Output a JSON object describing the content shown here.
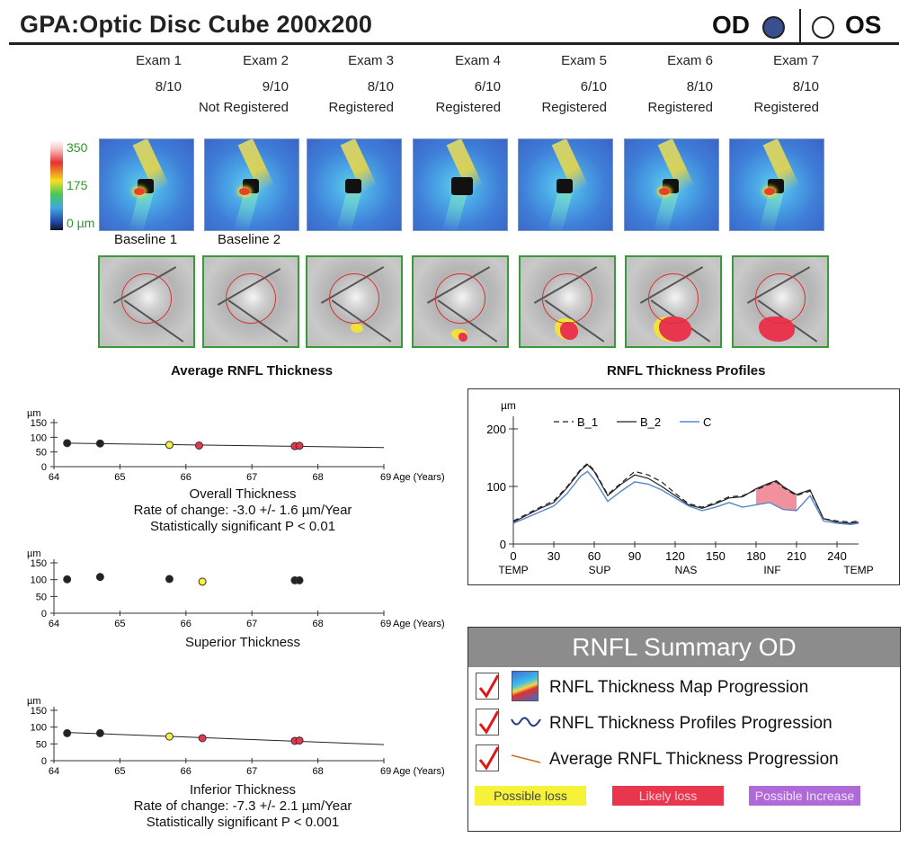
{
  "header": {
    "title": "GPA:Optic Disc Cube 200x200",
    "od_label": "OD",
    "os_label": "OS",
    "selected_eye": "OD"
  },
  "exams": [
    {
      "name": "Exam 1",
      "signal": "8/10",
      "status": ""
    },
    {
      "name": "Exam 2",
      "signal": "9/10",
      "status": "Not Registered"
    },
    {
      "name": "Exam 3",
      "signal": "8/10",
      "status": "Registered"
    },
    {
      "name": "Exam 4",
      "signal": "6/10",
      "status": "Registered"
    },
    {
      "name": "Exam 5",
      "signal": "6/10",
      "status": "Registered"
    },
    {
      "name": "Exam 6",
      "signal": "8/10",
      "status": "Registered"
    },
    {
      "name": "Exam 7",
      "signal": "8/10",
      "status": "Registered"
    }
  ],
  "color_scale": {
    "max": "350",
    "mid": "175",
    "min": "0 µm"
  },
  "baseline_labels": [
    "Baseline 1",
    "Baseline 2"
  ],
  "sections": {
    "average_title": "Average RNFL Thickness",
    "profiles_title": "RNFL Thickness Profiles"
  },
  "colors": {
    "possible_loss": "#f6f23a",
    "likely_loss": "#e8364e",
    "possible_increase": "#b06ad8",
    "od_fill": "#3a4f8e",
    "summary_header": "#8c8c8c"
  },
  "chart_data": [
    {
      "id": "overall",
      "type": "scatter",
      "title": "Overall Thickness",
      "rate": "Rate of change: -3.0 +/- 1.6 µm/Year",
      "significance": "Statistically significant P < 0.01",
      "ylabel": "µm",
      "xlabel": "Age (Years)",
      "xlim": [
        64,
        69
      ],
      "ylim": [
        0,
        150
      ],
      "yticks": [
        0,
        50,
        100,
        150
      ],
      "xticks": [
        64,
        65,
        66,
        67,
        68,
        69
      ],
      "points": [
        {
          "x": 64.2,
          "y": 80,
          "status": "normal"
        },
        {
          "x": 64.7,
          "y": 79,
          "status": "normal"
        },
        {
          "x": 65.75,
          "y": 74,
          "status": "possible"
        },
        {
          "x": 66.2,
          "y": 72,
          "status": "likely"
        },
        {
          "x": 67.65,
          "y": 70,
          "status": "likely"
        },
        {
          "x": 67.72,
          "y": 71,
          "status": "likely"
        }
      ],
      "trend": [
        [
          64.2,
          80
        ],
        [
          69,
          65
        ]
      ]
    },
    {
      "id": "superior",
      "type": "scatter",
      "title": "Superior Thickness",
      "rate": "",
      "significance": "",
      "ylabel": "µm",
      "xlabel": "Age (Years)",
      "xlim": [
        64,
        69
      ],
      "ylim": [
        0,
        150
      ],
      "yticks": [
        0,
        50,
        100,
        150
      ],
      "xticks": [
        64,
        65,
        66,
        67,
        68,
        69
      ],
      "points": [
        {
          "x": 64.2,
          "y": 101,
          "status": "normal"
        },
        {
          "x": 64.7,
          "y": 108,
          "status": "normal"
        },
        {
          "x": 65.75,
          "y": 102,
          "status": "normal"
        },
        {
          "x": 66.25,
          "y": 94,
          "status": "possible"
        },
        {
          "x": 67.65,
          "y": 98,
          "status": "normal"
        },
        {
          "x": 67.72,
          "y": 98,
          "status": "normal"
        }
      ],
      "trend": null
    },
    {
      "id": "inferior",
      "type": "scatter",
      "title": "Inferior Thickness",
      "rate": "Rate of change: -7.3 +/- 2.1 µm/Year",
      "significance": "Statistically significant P < 0.001",
      "ylabel": "µm",
      "xlabel": "Age (Years)",
      "xlim": [
        64,
        69
      ],
      "ylim": [
        0,
        150
      ],
      "yticks": [
        0,
        50,
        100,
        150
      ],
      "xticks": [
        64,
        65,
        66,
        67,
        68,
        69
      ],
      "points": [
        {
          "x": 64.2,
          "y": 82,
          "status": "normal"
        },
        {
          "x": 64.7,
          "y": 82,
          "status": "normal"
        },
        {
          "x": 65.75,
          "y": 72,
          "status": "possible"
        },
        {
          "x": 66.25,
          "y": 67,
          "status": "likely"
        },
        {
          "x": 67.65,
          "y": 59,
          "status": "likely"
        },
        {
          "x": 67.72,
          "y": 60,
          "status": "likely"
        }
      ],
      "trend": [
        [
          64.2,
          84
        ],
        [
          69,
          48
        ]
      ]
    },
    {
      "id": "profiles",
      "type": "line",
      "ylabel": "µm",
      "ylim": [
        0,
        250
      ],
      "xlim": [
        0,
        256
      ],
      "yticks": [
        0,
        100,
        200
      ],
      "xticks": [
        0,
        30,
        60,
        90,
        120,
        150,
        180,
        210,
        240
      ],
      "region_labels": [
        {
          "x": 0,
          "label": "TEMP"
        },
        {
          "x": 64,
          "label": "SUP"
        },
        {
          "x": 128,
          "label": "NAS"
        },
        {
          "x": 192,
          "label": "INF"
        },
        {
          "x": 256,
          "label": "TEMP"
        }
      ],
      "x": [
        0,
        10,
        20,
        30,
        40,
        50,
        55,
        60,
        70,
        80,
        90,
        100,
        110,
        120,
        130,
        140,
        150,
        160,
        170,
        180,
        190,
        195,
        200,
        210,
        220,
        230,
        240,
        250,
        256
      ],
      "series": [
        {
          "name": "B_1",
          "style": "dashed",
          "values": [
            40,
            52,
            64,
            75,
            100,
            130,
            140,
            128,
            86,
            106,
            126,
            120,
            108,
            88,
            70,
            64,
            72,
            82,
            84,
            94,
            104,
            108,
            98,
            84,
            92,
            44,
            40,
            38,
            40
          ]
        },
        {
          "name": "B_2",
          "style": "solid",
          "values": [
            38,
            50,
            62,
            72,
            98,
            128,
            138,
            126,
            84,
            104,
            120,
            114,
            100,
            84,
            68,
            62,
            70,
            80,
            82,
            96,
            106,
            110,
            100,
            86,
            94,
            44,
            38,
            36,
            38
          ]
        },
        {
          "name": "C",
          "style": "blue",
          "values": [
            36,
            46,
            56,
            66,
            88,
            118,
            126,
            112,
            74,
            92,
            108,
            104,
            94,
            80,
            66,
            58,
            64,
            72,
            64,
            68,
            72,
            66,
            60,
            58,
            84,
            40,
            36,
            34,
            36
          ]
        }
      ],
      "loss_region": [
        172,
        215
      ]
    }
  ],
  "summary": {
    "title": "RNFL Summary OD",
    "items": [
      {
        "label": "RNFL Thickness Map Progression",
        "checked": true,
        "icon": "thickness-map-icon"
      },
      {
        "label": "RNFL Thickness Profiles Progression",
        "checked": true,
        "icon": "wave-icon"
      },
      {
        "label": "Average RNFL Thickness Progression",
        "checked": true,
        "icon": "trend-line-icon"
      }
    ],
    "legend": [
      "Possible loss",
      "Likely loss",
      "Possible Increase"
    ]
  }
}
